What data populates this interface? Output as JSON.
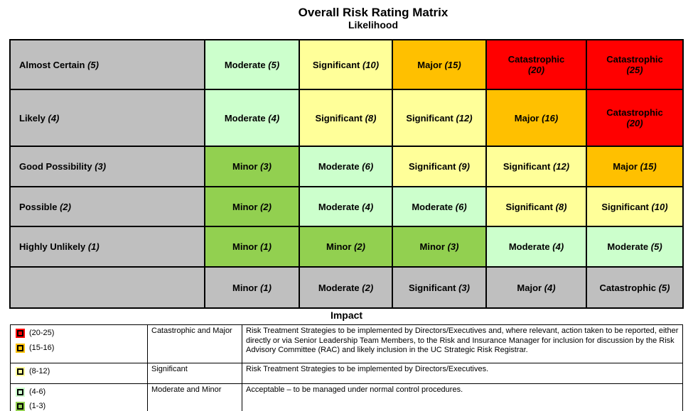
{
  "colors": {
    "red": "#FF0000",
    "orange": "#FFC000",
    "yellow": "#FFFF99",
    "light_green": "#CCFFCC",
    "green": "#92D050",
    "gray": "#BFBFBF"
  },
  "chart_data": {
    "type": "heatmap",
    "title": "Overall Risk Rating Matrix",
    "ylabel": "Likelihood",
    "xlabel": "Impact",
    "rows": [
      {
        "likelihood": {
          "name": "Almost Certain",
          "value": "(5)"
        },
        "cells": [
          {
            "name": "Moderate",
            "value": "(5)",
            "color": "light_green"
          },
          {
            "name": "Significant",
            "value": "(10)",
            "color": "yellow"
          },
          {
            "name": "Major",
            "value": "(15)",
            "color": "orange"
          },
          {
            "name": "Catastrophic",
            "value": "(20)",
            "color": "red",
            "two_line": true
          },
          {
            "name": "Catastrophic",
            "value": "(25)",
            "color": "red",
            "two_line": true
          }
        ]
      },
      {
        "likelihood": {
          "name": "Likely",
          "value": "(4)"
        },
        "cells": [
          {
            "name": "Moderate",
            "value": "(4)",
            "color": "light_green"
          },
          {
            "name": "Significant",
            "value": "(8)",
            "color": "yellow"
          },
          {
            "name": "Significant",
            "value": "(12)",
            "color": "yellow"
          },
          {
            "name": "Major",
            "value": "(16)",
            "color": "orange"
          },
          {
            "name": "Catastrophic",
            "value": "(20)",
            "color": "red",
            "two_line": true
          }
        ]
      },
      {
        "likelihood": {
          "name": "Good Possibility",
          "value": "(3)"
        },
        "cells": [
          {
            "name": "Minor",
            "value": "(3)",
            "color": "green"
          },
          {
            "name": "Moderate",
            "value": "(6)",
            "color": "light_green"
          },
          {
            "name": "Significant",
            "value": "(9)",
            "color": "yellow"
          },
          {
            "name": "Significant",
            "value": "(12)",
            "color": "yellow"
          },
          {
            "name": "Major",
            "value": "(15)",
            "color": "orange"
          }
        ]
      },
      {
        "likelihood": {
          "name": "Possible",
          "value": "(2)"
        },
        "cells": [
          {
            "name": "Minor",
            "value": "(2)",
            "color": "green"
          },
          {
            "name": "Moderate",
            "value": "(4)",
            "color": "light_green"
          },
          {
            "name": "Moderate",
            "value": "(6)",
            "color": "light_green"
          },
          {
            "name": "Significant",
            "value": "(8)",
            "color": "yellow"
          },
          {
            "name": "Significant",
            "value": "(10)",
            "color": "yellow"
          }
        ]
      },
      {
        "likelihood": {
          "name": "Highly Unlikely",
          "value": "(1)"
        },
        "cells": [
          {
            "name": "Minor",
            "value": "(1)",
            "color": "green"
          },
          {
            "name": "Minor",
            "value": "(2)",
            "color": "green"
          },
          {
            "name": "Minor",
            "value": "(3)",
            "color": "green"
          },
          {
            "name": "Moderate",
            "value": "(4)",
            "color": "light_green"
          },
          {
            "name": "Moderate",
            "value": "(5)",
            "color": "light_green"
          }
        ]
      }
    ],
    "impact_scale": [
      {
        "name": "Minor",
        "value": "(1)"
      },
      {
        "name": "Moderate",
        "value": "(2)"
      },
      {
        "name": "Significant",
        "value": "(3)"
      },
      {
        "name": "Major",
        "value": "(4)"
      },
      {
        "name": "Catastrophic",
        "value": "(5)"
      }
    ]
  },
  "legend": {
    "rows": [
      {
        "swatches": [
          {
            "color": "red",
            "range": "(20-25)"
          },
          {
            "color": "orange",
            "range": "(15-16)"
          }
        ],
        "category": "Catastrophic and Major",
        "description": "Risk Treatment Strategies to be implemented by Directors/Executives and, where relevant, action taken to be reported, either directly or via Senior Leadership Team Members, to the Risk and Insurance Manager for inclusion for discussion by the Risk Advisory Committee (RAC) and likely inclusion in the UC Strategic Risk Registrar."
      },
      {
        "swatches": [
          {
            "color": "yellow",
            "range": "(8-12)"
          }
        ],
        "category": "Significant",
        "description": "Risk Treatment Strategies to be implemented by Directors/Executives."
      },
      {
        "swatches": [
          {
            "color": "light_green",
            "range": "(4-6)"
          },
          {
            "color": "green",
            "range": "(1-3)"
          }
        ],
        "category": "Moderate and Minor",
        "description": "Acceptable – to be managed under normal control procedures."
      }
    ]
  }
}
